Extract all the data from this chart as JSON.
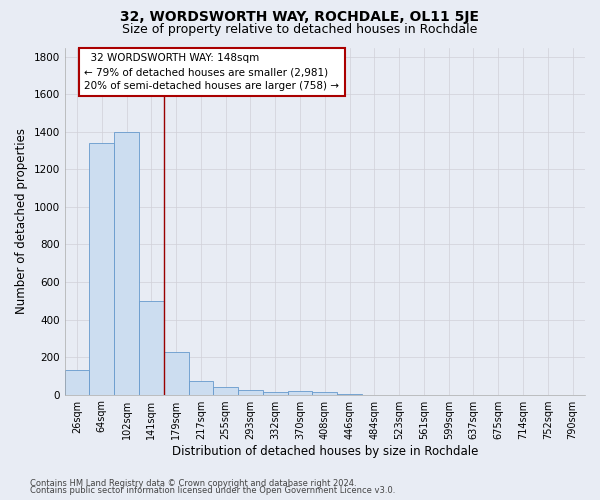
{
  "title": "32, WORDSWORTH WAY, ROCHDALE, OL11 5JE",
  "subtitle": "Size of property relative to detached houses in Rochdale",
  "xlabel": "Distribution of detached houses by size in Rochdale",
  "ylabel": "Number of detached properties",
  "footnote1": "Contains HM Land Registry data © Crown copyright and database right 2024.",
  "footnote2": "Contains public sector information licensed under the Open Government Licence v3.0.",
  "bar_labels": [
    "26sqm",
    "64sqm",
    "102sqm",
    "141sqm",
    "179sqm",
    "217sqm",
    "255sqm",
    "293sqm",
    "332sqm",
    "370sqm",
    "408sqm",
    "446sqm",
    "484sqm",
    "523sqm",
    "561sqm",
    "599sqm",
    "637sqm",
    "675sqm",
    "714sqm",
    "752sqm",
    "790sqm"
  ],
  "bar_values": [
    130,
    1340,
    1400,
    500,
    225,
    75,
    40,
    25,
    15,
    20,
    15,
    5,
    0,
    0,
    0,
    0,
    0,
    0,
    0,
    0,
    0
  ],
  "bar_color": "#ccddf0",
  "bar_edge_color": "#6699cc",
  "ylim": [
    0,
    1850
  ],
  "yticks": [
    0,
    200,
    400,
    600,
    800,
    1000,
    1200,
    1400,
    1600,
    1800
  ],
  "red_line_x": 3.5,
  "annotation_text": "  32 WORDSWORTH WAY: 148sqm\n← 79% of detached houses are smaller (2,981)\n20% of semi-detached houses are larger (758) →",
  "annotation_box_color": "#ffffff",
  "annotation_box_edge": "#aa0000",
  "grid_color": "#d0d0d8",
  "background_color": "#e8ecf4",
  "plot_bg_color": "#e8ecf4",
  "title_fontsize": 10,
  "subtitle_fontsize": 9,
  "annot_fontsize": 7.5,
  "tick_fontsize": 7,
  "label_fontsize": 8.5,
  "footnote_fontsize": 6
}
